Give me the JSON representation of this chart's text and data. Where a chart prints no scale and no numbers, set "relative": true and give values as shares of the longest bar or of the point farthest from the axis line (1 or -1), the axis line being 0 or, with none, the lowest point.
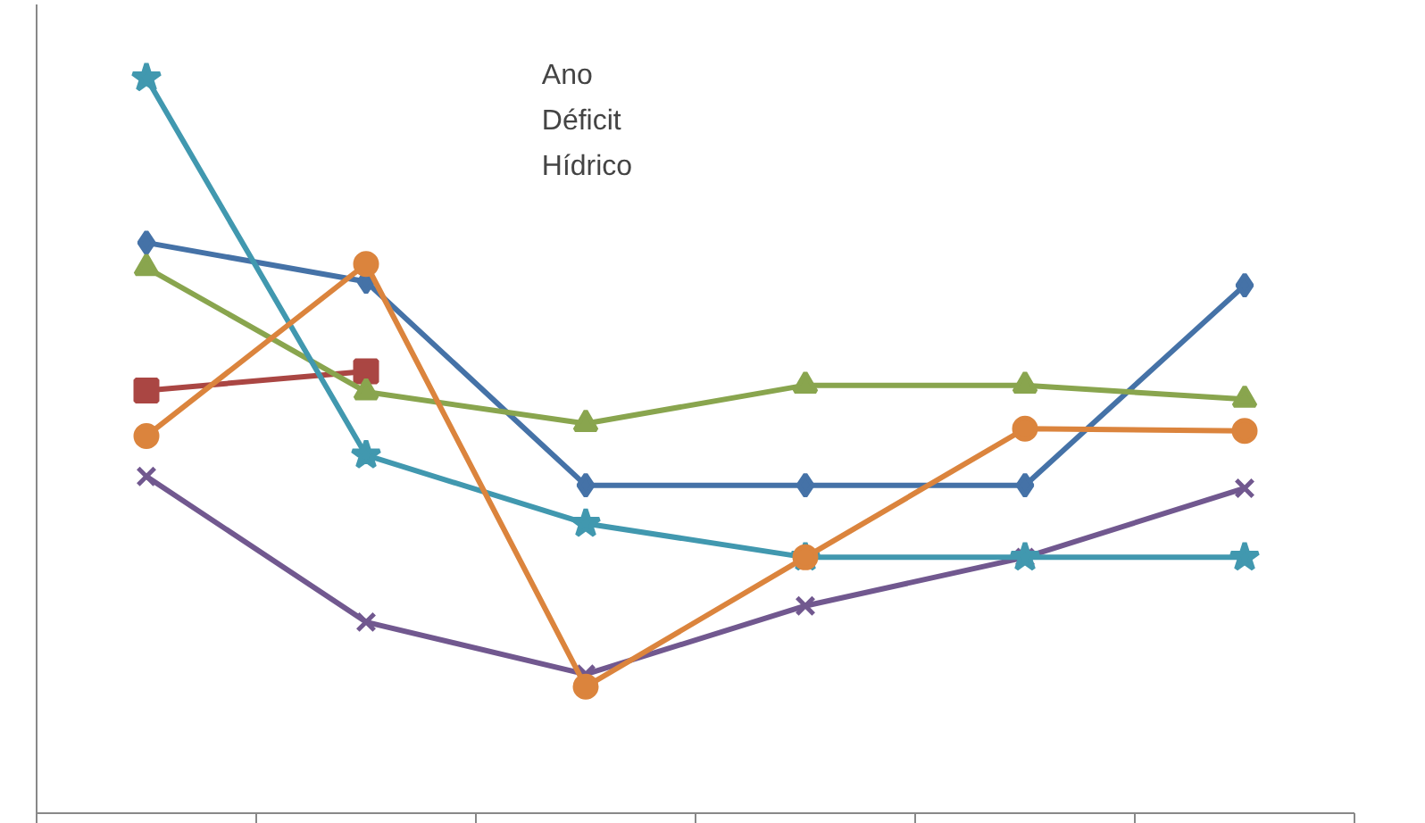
{
  "chart_data": {
    "type": "line",
    "relative": true,
    "categories": [
      null,
      null,
      null,
      null,
      null,
      null
    ],
    "annotations": [
      "Ano\nDéficit\nHídrico"
    ],
    "series": [
      {
        "color": "#4572a7",
        "marker": "diamond",
        "values": [
          0.776,
          0.723,
          0.446,
          0.446,
          0.446,
          0.718
        ]
      },
      {
        "color": "#aa4643",
        "marker": "square",
        "values": [
          0.575,
          0.601,
          null,
          null,
          null,
          null
        ]
      },
      {
        "color": "#89a54e",
        "marker": "triangle",
        "values": [
          0.742,
          0.573,
          0.53,
          0.582,
          0.582,
          0.563
        ]
      },
      {
        "color": "#71588f",
        "marker": "cross",
        "values": [
          0.458,
          0.26,
          0.189,
          0.282,
          0.348,
          0.442
        ]
      },
      {
        "color": "#4198af",
        "marker": "star",
        "values": [
          1,
          0.487,
          0.394,
          0.348,
          0.348,
          0.348
        ]
      },
      {
        "color": "#db843d",
        "marker": "circle",
        "values": [
          0.513,
          0.747,
          0.172,
          0.348,
          0.523,
          0.52
        ]
      }
    ],
    "tick_labels": false,
    "line_style": "solid"
  }
}
